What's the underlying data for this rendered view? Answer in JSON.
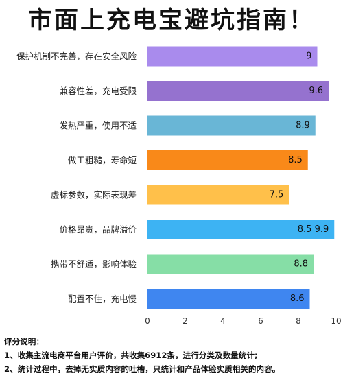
{
  "title": "市面上充电宝避坑指南！",
  "chart_data": {
    "type": "bar",
    "orientation": "horizontal",
    "categories": [
      "保护机制不完善，存在安全风险",
      "兼容性差，充电受限",
      "发热严重，使用不适",
      "做工粗糙，寿命短",
      "虚标参数，实际表现差",
      "价格昂贵，品牌溢价",
      "携带不舒适，影响体验",
      "配置不佳，充电慢"
    ],
    "values": [
      9,
      9.6,
      8.9,
      8.5,
      7.5,
      9.9,
      8.8,
      8.6
    ],
    "value_labels": [
      "9",
      "9.6",
      "8.9",
      "8.5",
      "7.5",
      "8.5 9.9",
      "8.8",
      "8.6"
    ],
    "colors": [
      "#a98bed",
      "#9572cf",
      "#69b6d6",
      "#f98919",
      "#ffc04a",
      "#3db3f3",
      "#86dea6",
      "#3f86f0"
    ],
    "xlim": [
      0,
      10
    ],
    "xticks": [
      0,
      2,
      4,
      6,
      8,
      10
    ],
    "xlabel": "",
    "ylabel": "",
    "grid": false,
    "legend": "none"
  },
  "notes": {
    "heading": "评分说明：",
    "items": [
      "1、收集主流电商平台用户评价，共收集6912条，进行分类及数量统计;",
      "2、统计过程中，去掉无实质内容的吐槽，只统计和产品体验实质相关的内容。"
    ]
  }
}
